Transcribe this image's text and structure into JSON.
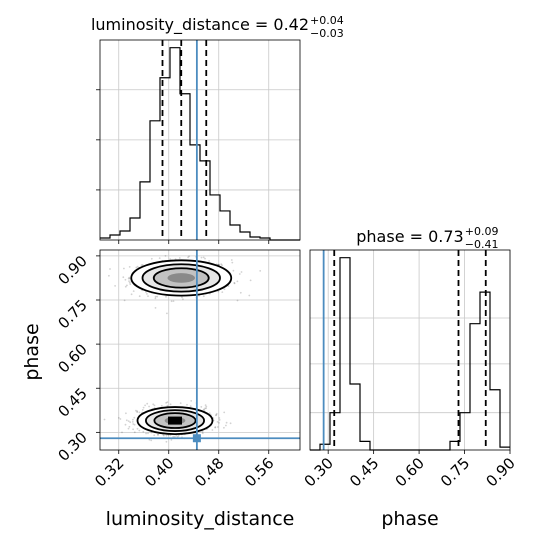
{
  "chart_data": [
    {
      "type": "histogram",
      "panel": "luminosity_distance",
      "title": {
        "text": "luminosity_distance = 0.42",
        "sup": "+0.04",
        "sub": "−0.03"
      },
      "xlim": [
        0.29,
        0.61
      ],
      "grid": true,
      "bin_edges": [
        0.29,
        0.306,
        0.322,
        0.338,
        0.354,
        0.37,
        0.386,
        0.402,
        0.418,
        0.434,
        0.45,
        0.466,
        0.482,
        0.498,
        0.514,
        0.53,
        0.546,
        0.562,
        0.578,
        0.594,
        0.61
      ],
      "counts": [
        2,
        5,
        9,
        22,
        58,
        119,
        162,
        192,
        146,
        95,
        79,
        45,
        29,
        15,
        8,
        3,
        2,
        0,
        0,
        0
      ],
      "quantiles": [
        0.39,
        0.42,
        0.46
      ],
      "truth": 0.445
    },
    {
      "type": "contour",
      "panel": "luminosity_distance_vs_phase",
      "xlabel": "luminosity_distance",
      "ylabel": "phase",
      "xlim": [
        0.29,
        0.61
      ],
      "ylim": [
        0.24,
        0.92
      ],
      "xticks": [
        "0.32",
        "0.40",
        "0.48",
        "0.56"
      ],
      "yticks": [
        "0.30",
        "0.45",
        "0.60",
        "0.75",
        "0.90"
      ],
      "grid": true,
      "modes": [
        {
          "x": 0.42,
          "y": 0.825,
          "sx": 0.04,
          "sy": 0.03
        },
        {
          "x": 0.41,
          "y": 0.34,
          "sx": 0.03,
          "sy": 0.023
        }
      ],
      "truth": {
        "x": 0.445,
        "y": 0.28
      }
    },
    {
      "type": "histogram",
      "panel": "phase",
      "title": {
        "text": "phase = 0.73",
        "sup": "+0.09",
        "sub": "−0.41"
      },
      "xlabel": "phase",
      "xlim": [
        0.24,
        0.9
      ],
      "xticks": [
        "0.30",
        "0.45",
        "0.60",
        "0.75",
        "0.90"
      ],
      "grid": true,
      "bin_edges": [
        0.24,
        0.273,
        0.306,
        0.339,
        0.372,
        0.405,
        0.438,
        0.471,
        0.504,
        0.537,
        0.57,
        0.603,
        0.636,
        0.669,
        0.702,
        0.735,
        0.768,
        0.801,
        0.834,
        0.867,
        0.9
      ],
      "counts": [
        0,
        2,
        13,
        67,
        23,
        3,
        0,
        0,
        0,
        0,
        0,
        0,
        0,
        0,
        3,
        13,
        44,
        55,
        21,
        1
      ],
      "quantiles": [
        0.32,
        0.73,
        0.82
      ],
      "truth": 0.285
    }
  ]
}
